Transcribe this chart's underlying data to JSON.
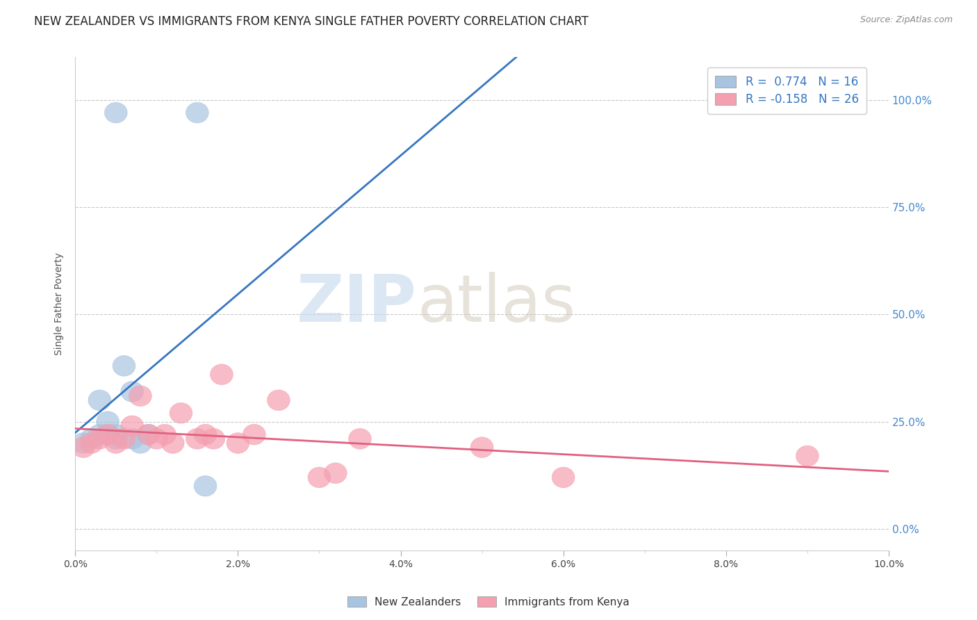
{
  "title": "NEW ZEALANDER VS IMMIGRANTS FROM KENYA SINGLE FATHER POVERTY CORRELATION CHART",
  "source": "Source: ZipAtlas.com",
  "ylabel": "Single Father Poverty",
  "r_blue": 0.774,
  "n_blue": 16,
  "r_pink": -0.158,
  "n_pink": 26,
  "blue_color": "#a8c4e0",
  "pink_color": "#f4a0b0",
  "blue_line_color": "#3575c0",
  "pink_line_color": "#e06080",
  "watermark_zip": "ZIP",
  "watermark_atlas": "atlas",
  "ytick_labels": [
    "0.0%",
    "25.0%",
    "50.0%",
    "75.0%",
    "100.0%"
  ],
  "ytick_values": [
    0.0,
    0.25,
    0.5,
    0.75,
    1.0
  ],
  "xlim": [
    0.0,
    0.1
  ],
  "ylim": [
    -0.05,
    1.1
  ],
  "blue_scatter_x": [
    0.001,
    0.002,
    0.003,
    0.003,
    0.004,
    0.004,
    0.005,
    0.005,
    0.005,
    0.006,
    0.007,
    0.007,
    0.008,
    0.009,
    0.015,
    0.016
  ],
  "blue_scatter_y": [
    0.2,
    0.21,
    0.22,
    0.3,
    0.22,
    0.25,
    0.21,
    0.22,
    0.97,
    0.38,
    0.21,
    0.32,
    0.2,
    0.22,
    0.97,
    0.1
  ],
  "pink_scatter_x": [
    0.001,
    0.002,
    0.003,
    0.004,
    0.005,
    0.006,
    0.007,
    0.008,
    0.009,
    0.01,
    0.011,
    0.012,
    0.013,
    0.015,
    0.016,
    0.017,
    0.018,
    0.02,
    0.022,
    0.025,
    0.03,
    0.032,
    0.035,
    0.05,
    0.06,
    0.09
  ],
  "pink_scatter_y": [
    0.19,
    0.2,
    0.21,
    0.22,
    0.2,
    0.21,
    0.24,
    0.31,
    0.22,
    0.21,
    0.22,
    0.2,
    0.27,
    0.21,
    0.22,
    0.21,
    0.36,
    0.2,
    0.22,
    0.3,
    0.12,
    0.13,
    0.21,
    0.19,
    0.12,
    0.17
  ],
  "grid_color": "#c8c8c8",
  "background_color": "#ffffff",
  "right_axis_color": "#4488cc",
  "title_fontsize": 12,
  "legend_fontsize": 12
}
